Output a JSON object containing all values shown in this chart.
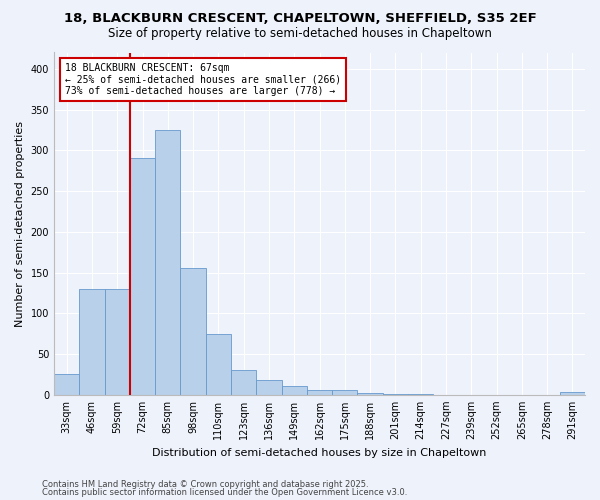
{
  "title_line1": "18, BLACKBURN CRESCENT, CHAPELTOWN, SHEFFIELD, S35 2EF",
  "title_line2": "Size of property relative to semi-detached houses in Chapeltown",
  "xlabel": "Distribution of semi-detached houses by size in Chapeltown",
  "ylabel": "Number of semi-detached properties",
  "categories": [
    "33sqm",
    "46sqm",
    "59sqm",
    "72sqm",
    "85sqm",
    "98sqm",
    "110sqm",
    "123sqm",
    "136sqm",
    "149sqm",
    "162sqm",
    "175sqm",
    "188sqm",
    "201sqm",
    "214sqm",
    "227sqm",
    "239sqm",
    "252sqm",
    "265sqm",
    "278sqm",
    "291sqm"
  ],
  "values": [
    25,
    130,
    130,
    290,
    325,
    155,
    75,
    30,
    18,
    11,
    6,
    6,
    2,
    1,
    1,
    0,
    0,
    0,
    0,
    0,
    3
  ],
  "bar_color": "#b8d0ea",
  "bar_edge_color": "#6699cc",
  "vline_color": "#cc0000",
  "annotation_text": "18 BLACKBURN CRESCENT: 67sqm\n← 25% of semi-detached houses are smaller (266)\n73% of semi-detached houses are larger (778) →",
  "annotation_box_color": "#ffffff",
  "annotation_box_edge": "#cc0000",
  "ylim": [
    0,
    420
  ],
  "yticks": [
    0,
    50,
    100,
    150,
    200,
    250,
    300,
    350,
    400
  ],
  "bg_color": "#eef2fb",
  "plot_bg_color": "#eef2fb",
  "footer_line1": "Contains HM Land Registry data © Crown copyright and database right 2025.",
  "footer_line2": "Contains public sector information licensed under the Open Government Licence v3.0.",
  "title_fontsize": 9.5,
  "subtitle_fontsize": 8.5,
  "axis_label_fontsize": 8,
  "tick_fontsize": 7,
  "footer_fontsize": 6
}
